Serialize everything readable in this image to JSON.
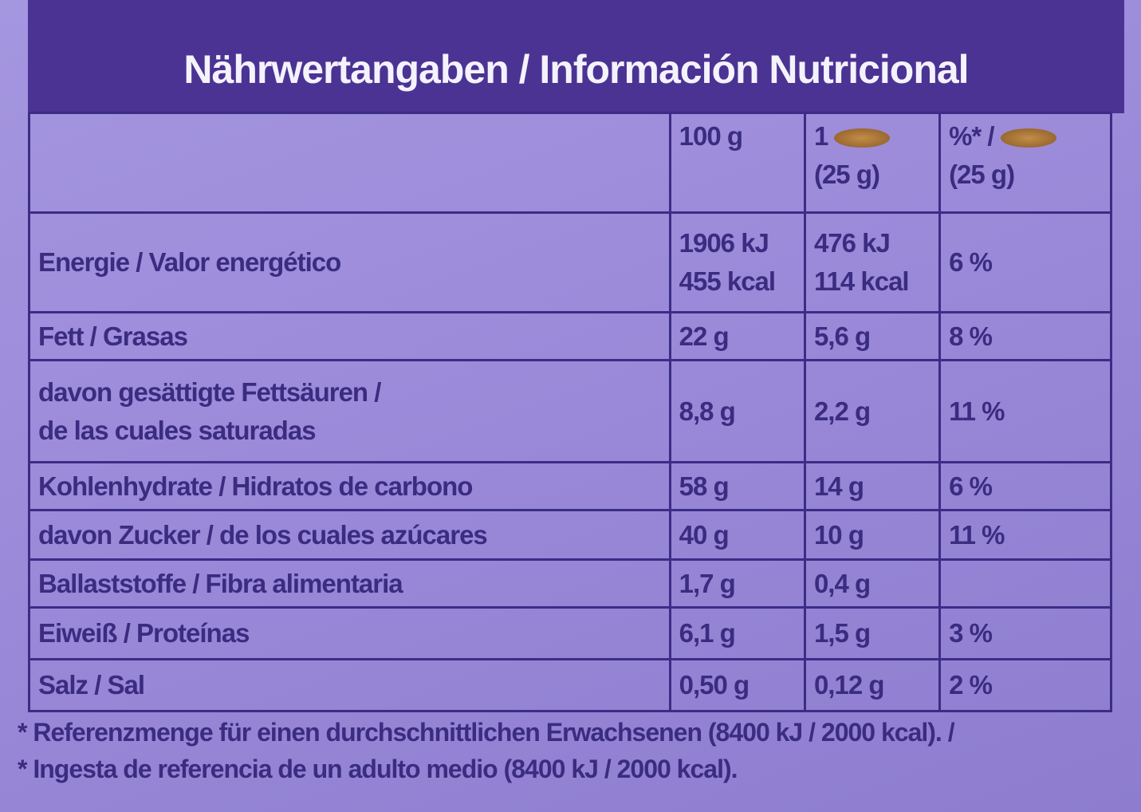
{
  "header": {
    "title": "Nährwertangaben / Información Nutricional"
  },
  "table": {
    "columns": [
      [
        "100 g"
      ],
      [
        "1",
        "(25 g)"
      ],
      [
        "%* /",
        "(25 g)"
      ]
    ],
    "rows": [
      {
        "label": [
          "Energie / Valor energético"
        ],
        "cells": [
          [
            "1906 kJ",
            "455 kcal"
          ],
          [
            "476 kJ",
            "114 kcal"
          ],
          [
            "6 %"
          ]
        ]
      },
      {
        "label": [
          "Fett / Grasas"
        ],
        "cells": [
          [
            "22 g"
          ],
          [
            "5,6 g"
          ],
          [
            "8 %"
          ]
        ]
      },
      {
        "label": [
          "davon gesättigte Fettsäuren /",
          "de las cuales saturadas"
        ],
        "cells": [
          [
            "8,8 g"
          ],
          [
            "2,2 g"
          ],
          [
            "11 %"
          ]
        ]
      },
      {
        "label": [
          "Kohlenhydrate / Hidratos de carbono"
        ],
        "cells": [
          [
            "58 g"
          ],
          [
            "14 g"
          ],
          [
            "6 %"
          ]
        ]
      },
      {
        "label": [
          "davon Zucker / de los cuales azúcares"
        ],
        "cells": [
          [
            "40 g"
          ],
          [
            "10 g"
          ],
          [
            "11 %"
          ]
        ]
      },
      {
        "label": [
          "Ballaststoffe / Fibra alimentaria"
        ],
        "cells": [
          [
            "1,7 g"
          ],
          [
            "0,4 g"
          ]
        ]
      },
      {
        "label": [
          "Eiweiß / Proteínas"
        ],
        "cells": [
          [
            "6,1 g"
          ],
          [
            "1,5 g"
          ],
          [
            "3 %"
          ]
        ]
      },
      {
        "label": [
          "Salz / Sal"
        ],
        "cells": [
          [
            "0,50 g"
          ],
          [
            "0,12 g"
          ],
          [
            "2 %"
          ]
        ]
      }
    ]
  },
  "footnote": [
    "* Referenzmenge für einen durchschnittlichen Erwachsenen (8400 kJ / 2000 kcal). /",
    "* Ingesta de referencia de un adulto medio (8400 kJ / 2000 kcal)."
  ]
}
